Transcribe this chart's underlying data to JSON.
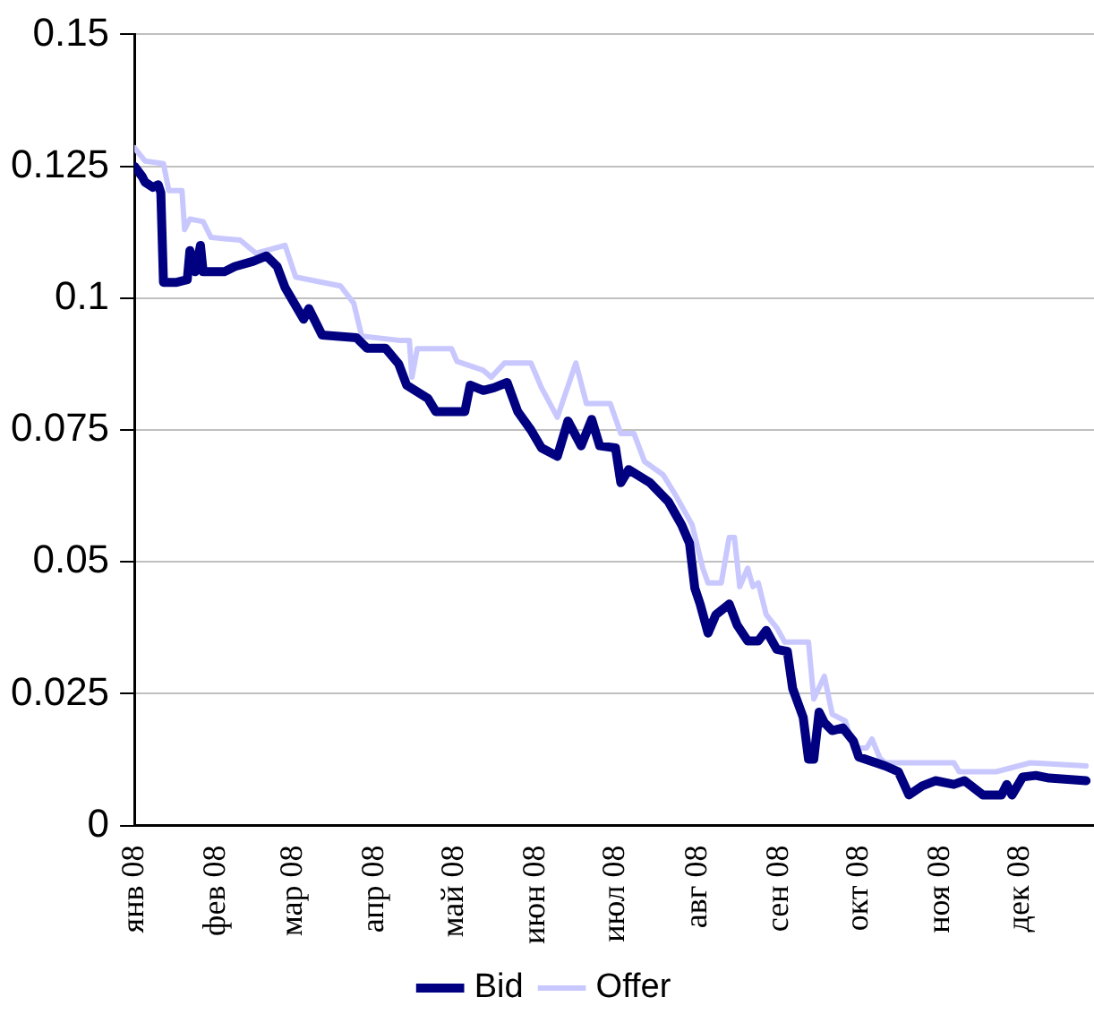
{
  "chart_data": {
    "type": "line",
    "xlim": [
      "2008-01-01",
      "2008-12-29"
    ],
    "xticks": [
      {
        "value": "2008-01-01",
        "label": "янв 08"
      },
      {
        "value": "2008-02-01",
        "label": "фев 08"
      },
      {
        "value": "2008-03-01",
        "label": "мар 08"
      },
      {
        "value": "2008-04-01",
        "label": "апр 08"
      },
      {
        "value": "2008-05-01",
        "label": "май 08"
      },
      {
        "value": "2008-06-01",
        "label": "июн 08"
      },
      {
        "value": "2008-07-01",
        "label": "июл 08"
      },
      {
        "value": "2008-08-01",
        "label": "авг 08"
      },
      {
        "value": "2008-09-01",
        "label": "сен 08"
      },
      {
        "value": "2008-10-01",
        "label": "окт 08"
      },
      {
        "value": "2008-11-01",
        "label": "ноя 08"
      },
      {
        "value": "2008-12-01",
        "label": "дек 08"
      }
    ],
    "ylim": [
      0,
      0.15
    ],
    "yticks": [
      0,
      0.025,
      0.05,
      0.075,
      0.1,
      0.125,
      0.15
    ],
    "grid": "y",
    "legend": "bottom",
    "marker": "none",
    "line_style": "solid",
    "series": [
      {
        "name": "Bid",
        "color": "#000080",
        "x": [
          "2008-01-01",
          "2008-01-04",
          "2008-01-05",
          "2008-01-08",
          "2008-01-10",
          "2008-01-11",
          "2008-01-12",
          "2008-01-17",
          "2008-01-21",
          "2008-01-22",
          "2008-01-24",
          "2008-01-26",
          "2008-01-27",
          "2008-02-04",
          "2008-02-08",
          "2008-02-15",
          "2008-02-20",
          "2008-02-24",
          "2008-02-27",
          "2008-03-05",
          "2008-03-07",
          "2008-03-12",
          "2008-03-25",
          "2008-03-29",
          "2008-04-05",
          "2008-04-10",
          "2008-04-13",
          "2008-04-21",
          "2008-04-24",
          "2008-05-05",
          "2008-05-07",
          "2008-05-12",
          "2008-05-16",
          "2008-05-21",
          "2008-05-25",
          "2008-05-30",
          "2008-06-03",
          "2008-06-09",
          "2008-06-13",
          "2008-06-18",
          "2008-06-22",
          "2008-06-25",
          "2008-07-01",
          "2008-07-03",
          "2008-07-06",
          "2008-07-14",
          "2008-07-21",
          "2008-07-26",
          "2008-07-29",
          "2008-07-31",
          "2008-08-02",
          "2008-08-05",
          "2008-08-08",
          "2008-08-13",
          "2008-08-16",
          "2008-08-20",
          "2008-08-24",
          "2008-08-27",
          "2008-08-31",
          "2008-09-04",
          "2008-09-06",
          "2008-09-10",
          "2008-09-12",
          "2008-09-14",
          "2008-09-16",
          "2008-09-18",
          "2008-09-21",
          "2008-09-25",
          "2008-09-29",
          "2008-10-01",
          "2008-10-11",
          "2008-10-16",
          "2008-10-20",
          "2008-10-25",
          "2008-10-30",
          "2008-11-06",
          "2008-11-10",
          "2008-11-17",
          "2008-11-24",
          "2008-11-26",
          "2008-11-28",
          "2008-12-02",
          "2008-12-07",
          "2008-12-12",
          "2008-12-26"
        ],
        "values": [
          0.125,
          0.123,
          0.122,
          0.121,
          0.1215,
          0.12,
          0.103,
          0.103,
          0.1035,
          0.109,
          0.105,
          0.11,
          0.105,
          0.105,
          0.106,
          0.107,
          0.108,
          0.106,
          0.102,
          0.096,
          0.098,
          0.093,
          0.0925,
          0.0905,
          0.0905,
          0.0875,
          0.0835,
          0.081,
          0.0785,
          0.0785,
          0.0835,
          0.0825,
          0.083,
          0.084,
          0.0785,
          0.075,
          0.0716,
          0.07,
          0.0767,
          0.072,
          0.077,
          0.072,
          0.0716,
          0.065,
          0.0675,
          0.065,
          0.0614,
          0.057,
          0.0535,
          0.045,
          0.042,
          0.0365,
          0.04,
          0.042,
          0.038,
          0.035,
          0.035,
          0.037,
          0.0334,
          0.033,
          0.026,
          0.0205,
          0.0126,
          0.0126,
          0.0215,
          0.0195,
          0.018,
          0.0185,
          0.016,
          0.013,
          0.0113,
          0.0102,
          0.0058,
          0.0075,
          0.0085,
          0.0078,
          0.0085,
          0.0058,
          0.0058,
          0.0078,
          0.0058,
          0.0092,
          0.0095,
          0.009,
          0.0085
        ]
      },
      {
        "name": "Offer",
        "color": "#c8c8ff",
        "x": [
          "2008-01-01",
          "2008-01-05",
          "2008-01-12",
          "2008-01-14",
          "2008-01-19",
          "2008-01-20",
          "2008-01-22",
          "2008-01-27",
          "2008-01-30",
          "2008-02-10",
          "2008-02-16",
          "2008-02-27",
          "2008-03-02",
          "2008-03-19",
          "2008-03-24",
          "2008-03-27",
          "2008-04-10",
          "2008-04-14",
          "2008-04-15",
          "2008-04-17",
          "2008-04-30",
          "2008-05-02",
          "2008-05-12",
          "2008-05-15",
          "2008-05-20",
          "2008-05-30",
          "2008-06-03",
          "2008-06-09",
          "2008-06-16",
          "2008-06-20",
          "2008-06-29",
          "2008-07-03",
          "2008-07-08",
          "2008-07-12",
          "2008-07-19",
          "2008-07-24",
          "2008-07-30",
          "2008-08-03",
          "2008-08-05",
          "2008-08-10",
          "2008-08-13",
          "2008-08-15",
          "2008-08-17",
          "2008-08-20",
          "2008-08-22",
          "2008-08-24",
          "2008-08-27",
          "2008-08-31",
          "2008-09-03",
          "2008-09-12",
          "2008-09-14",
          "2008-09-18",
          "2008-09-21",
          "2008-09-26",
          "2008-09-29",
          "2008-10-04",
          "2008-10-06",
          "2008-10-09",
          "2008-10-11",
          "2008-11-06",
          "2008-11-08",
          "2008-11-22",
          "2008-12-05",
          "2008-12-26"
        ],
        "values": [
          0.1285,
          0.126,
          0.1255,
          0.1204,
          0.1204,
          0.113,
          0.115,
          0.1145,
          0.1115,
          0.111,
          0.1085,
          0.11,
          0.104,
          0.1023,
          0.099,
          0.0928,
          0.092,
          0.092,
          0.085,
          0.0904,
          0.0904,
          0.088,
          0.0863,
          0.085,
          0.0877,
          0.0877,
          0.083,
          0.0774,
          0.0877,
          0.08,
          0.08,
          0.0743,
          0.0743,
          0.069,
          0.0665,
          0.0624,
          0.057,
          0.0488,
          0.046,
          0.046,
          0.0546,
          0.0546,
          0.0453,
          0.0488,
          0.0453,
          0.046,
          0.04,
          0.0375,
          0.0348,
          0.0348,
          0.024,
          0.0283,
          0.0211,
          0.0198,
          0.0147,
          0.0147,
          0.0164,
          0.0128,
          0.0119,
          0.0119,
          0.0102,
          0.0102,
          0.0119,
          0.0113
        ]
      }
    ]
  }
}
